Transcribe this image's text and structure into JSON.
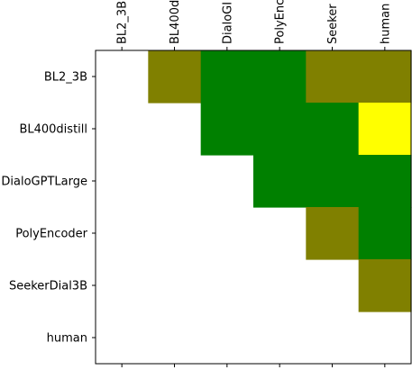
{
  "chart_data": {
    "type": "heatmap",
    "title": "",
    "xlabel": "",
    "ylabel": "",
    "rows": [
      "BL2_3B",
      "BL400distill",
      "DialoGPTLarge",
      "PolyEncoder",
      "SeekerDial3B",
      "human"
    ],
    "columns": [
      "BL2_3B",
      "BL400distill",
      "DialoGPTLarge",
      "PolyEncoder",
      "SeekerDial3B",
      "human"
    ],
    "column_tick_labels": [
      "BL2_3B",
      "BL400d",
      "DialoGI",
      "PolyEnc",
      "Seeker",
      "human"
    ],
    "cells": [
      [
        null,
        "olive",
        "green",
        "green",
        "olive",
        "olive"
      ],
      [
        null,
        null,
        "green",
        "green",
        "green",
        "yellow"
      ],
      [
        null,
        null,
        null,
        "green",
        "green",
        "green"
      ],
      [
        null,
        null,
        null,
        null,
        "olive",
        "green"
      ],
      [
        null,
        null,
        null,
        null,
        null,
        "olive"
      ],
      [
        null,
        null,
        null,
        null,
        null,
        null
      ]
    ],
    "colors": {
      "olive": "#808000",
      "green": "#008000",
      "yellow": "#ffff00",
      "empty": "#ffffff"
    },
    "grid": false
  }
}
